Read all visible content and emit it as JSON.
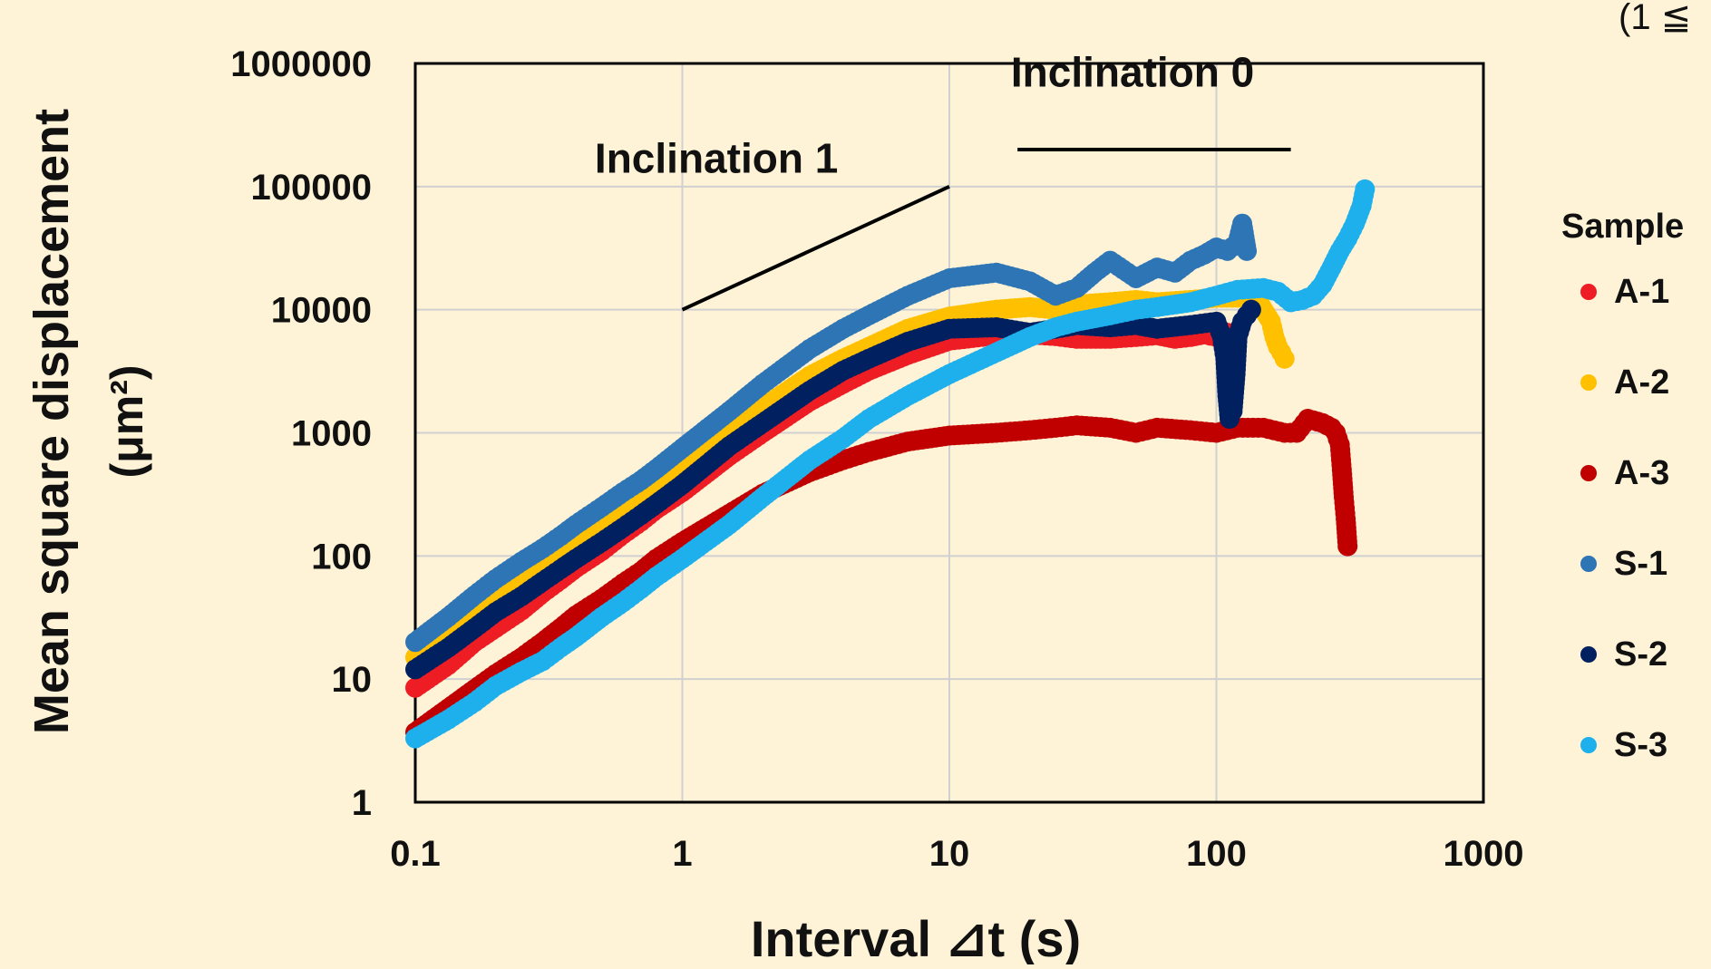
{
  "corner_note": "(1 ≦",
  "chart_data": {
    "type": "scatter",
    "title": "",
    "xlabel": "Interval ⊿t (s)",
    "ylabel_line1": "Mean square displacement",
    "ylabel_line2": "(μm²)",
    "x_scale": "log",
    "y_scale": "log",
    "xlim": [
      0.1,
      1000
    ],
    "ylim": [
      1,
      1000000
    ],
    "x_ticks": [
      0.1,
      1,
      10,
      100,
      1000
    ],
    "x_tick_labels": [
      "0.1",
      "1",
      "10",
      "100",
      "1000"
    ],
    "y_ticks": [
      1,
      10,
      100,
      1000,
      10000,
      100000,
      1000000
    ],
    "y_tick_labels": [
      "1",
      "10",
      "100",
      "1000",
      "10000",
      "100000",
      "1000000"
    ],
    "grid": true,
    "legend_title": "Sample",
    "legend_position": "right",
    "annotations": [
      {
        "text": "Inclination 1",
        "line": [
          [
            1,
            10000
          ],
          [
            10,
            100000
          ]
        ],
        "label_at": [
          0.47,
          130000
        ]
      },
      {
        "text": "Inclination 0",
        "line": [
          [
            18,
            200000
          ],
          [
            190,
            200000
          ]
        ],
        "label_at": [
          17,
          650000
        ]
      }
    ],
    "series": [
      {
        "name": "A-1",
        "color": "#ee1d24",
        "points": [
          [
            0.1,
            8.5
          ],
          [
            0.133,
            13
          ],
          [
            0.167,
            20
          ],
          [
            0.2,
            26
          ],
          [
            0.25,
            36
          ],
          [
            0.3,
            50
          ],
          [
            0.35,
            64
          ],
          [
            0.4,
            80
          ],
          [
            0.5,
            110
          ],
          [
            0.6,
            150
          ],
          [
            0.7,
            190
          ],
          [
            0.8,
            240
          ],
          [
            1,
            330
          ],
          [
            1.5,
            650
          ],
          [
            2,
            1000
          ],
          [
            3,
            1800
          ],
          [
            4,
            2500
          ],
          [
            5,
            3200
          ],
          [
            7,
            4300
          ],
          [
            10,
            5600
          ],
          [
            15,
            6200
          ],
          [
            20,
            6300
          ],
          [
            25,
            6100
          ],
          [
            30,
            5800
          ],
          [
            40,
            5800
          ],
          [
            50,
            6000
          ],
          [
            60,
            6200
          ],
          [
            70,
            5800
          ],
          [
            80,
            6000
          ],
          [
            90,
            6300
          ],
          [
            100,
            6000
          ],
          [
            110,
            6500
          ]
        ]
      },
      {
        "name": "A-2",
        "color": "#ffc000",
        "points": [
          [
            0.1,
            15
          ],
          [
            0.133,
            23
          ],
          [
            0.167,
            33
          ],
          [
            0.2,
            44
          ],
          [
            0.25,
            60
          ],
          [
            0.3,
            80
          ],
          [
            0.35,
            100
          ],
          [
            0.4,
            125
          ],
          [
            0.5,
            175
          ],
          [
            0.6,
            230
          ],
          [
            0.7,
            290
          ],
          [
            0.8,
            360
          ],
          [
            1,
            520
          ],
          [
            1.5,
            1000
          ],
          [
            2,
            1600
          ],
          [
            3,
            2900
          ],
          [
            4,
            4000
          ],
          [
            5,
            5000
          ],
          [
            7,
            7000
          ],
          [
            10,
            8800
          ],
          [
            15,
            10000
          ],
          [
            20,
            10500
          ],
          [
            25,
            10000
          ],
          [
            30,
            11000
          ],
          [
            40,
            11500
          ],
          [
            50,
            12000
          ],
          [
            60,
            11500
          ],
          [
            80,
            12000
          ],
          [
            100,
            12500
          ],
          [
            120,
            12500
          ],
          [
            140,
            13000
          ],
          [
            150,
            10000
          ],
          [
            160,
            8000
          ],
          [
            165,
            6000
          ],
          [
            170,
            5000
          ],
          [
            175,
            4500
          ],
          [
            180,
            4000
          ]
        ]
      },
      {
        "name": "A-3",
        "color": "#c00000",
        "points": [
          [
            0.1,
            3.7
          ],
          [
            0.133,
            5.8
          ],
          [
            0.167,
            8.3
          ],
          [
            0.2,
            11
          ],
          [
            0.25,
            15
          ],
          [
            0.3,
            20
          ],
          [
            0.35,
            26
          ],
          [
            0.4,
            33
          ],
          [
            0.5,
            45
          ],
          [
            0.6,
            60
          ],
          [
            0.7,
            75
          ],
          [
            0.8,
            95
          ],
          [
            1,
            130
          ],
          [
            1.5,
            220
          ],
          [
            2,
            320
          ],
          [
            3,
            480
          ],
          [
            4,
            600
          ],
          [
            5,
            700
          ],
          [
            7,
            850
          ],
          [
            10,
            950
          ],
          [
            15,
            1000
          ],
          [
            20,
            1050
          ],
          [
            25,
            1100
          ],
          [
            30,
            1150
          ],
          [
            40,
            1100
          ],
          [
            50,
            1000
          ],
          [
            60,
            1100
          ],
          [
            80,
            1050
          ],
          [
            100,
            1000
          ],
          [
            120,
            1100
          ],
          [
            150,
            1100
          ],
          [
            180,
            1000
          ],
          [
            200,
            1000
          ],
          [
            220,
            1300
          ],
          [
            250,
            1200
          ],
          [
            270,
            1100
          ],
          [
            280,
            1000
          ],
          [
            290,
            800
          ],
          [
            295,
            500
          ],
          [
            300,
            300
          ],
          [
            305,
            200
          ],
          [
            310,
            120
          ]
        ]
      },
      {
        "name": "S-1",
        "color": "#2e75b6",
        "points": [
          [
            0.1,
            20
          ],
          [
            0.133,
            32
          ],
          [
            0.167,
            48
          ],
          [
            0.2,
            65
          ],
          [
            0.25,
            90
          ],
          [
            0.3,
            115
          ],
          [
            0.35,
            145
          ],
          [
            0.4,
            180
          ],
          [
            0.5,
            250
          ],
          [
            0.6,
            330
          ],
          [
            0.7,
            410
          ],
          [
            0.8,
            510
          ],
          [
            1,
            750
          ],
          [
            1.5,
            1500
          ],
          [
            2,
            2500
          ],
          [
            3,
            4800
          ],
          [
            4,
            7000
          ],
          [
            5,
            9000
          ],
          [
            7,
            13000
          ],
          [
            10,
            18000
          ],
          [
            15,
            20000
          ],
          [
            20,
            17000
          ],
          [
            25,
            13000
          ],
          [
            30,
            15000
          ],
          [
            35,
            20000
          ],
          [
            40,
            25000
          ],
          [
            50,
            18000
          ],
          [
            60,
            22000
          ],
          [
            70,
            20000
          ],
          [
            80,
            25000
          ],
          [
            90,
            28000
          ],
          [
            100,
            32000
          ],
          [
            110,
            30000
          ],
          [
            120,
            35000
          ],
          [
            125,
            50000
          ],
          [
            130,
            30000
          ]
        ]
      },
      {
        "name": "S-2",
        "color": "#002060",
        "points": [
          [
            0.1,
            12
          ],
          [
            0.133,
            18
          ],
          [
            0.167,
            26
          ],
          [
            0.2,
            35
          ],
          [
            0.25,
            47
          ],
          [
            0.3,
            62
          ],
          [
            0.35,
            78
          ],
          [
            0.4,
            95
          ],
          [
            0.5,
            130
          ],
          [
            0.6,
            170
          ],
          [
            0.7,
            215
          ],
          [
            0.8,
            265
          ],
          [
            1,
            380
          ],
          [
            1.5,
            780
          ],
          [
            2,
            1200
          ],
          [
            3,
            2200
          ],
          [
            4,
            3200
          ],
          [
            5,
            4000
          ],
          [
            7,
            5500
          ],
          [
            10,
            7000
          ],
          [
            15,
            7200
          ],
          [
            20,
            6500
          ],
          [
            25,
            7000
          ],
          [
            30,
            7500
          ],
          [
            40,
            7200
          ],
          [
            50,
            7500
          ],
          [
            60,
            7000
          ],
          [
            80,
            7500
          ],
          [
            100,
            8000
          ],
          [
            105,
            6000
          ],
          [
            108,
            4000
          ],
          [
            110,
            2000
          ],
          [
            112,
            1300
          ],
          [
            115,
            1500
          ],
          [
            118,
            3000
          ],
          [
            120,
            6000
          ],
          [
            125,
            8000
          ],
          [
            130,
            9000
          ],
          [
            135,
            10000
          ]
        ]
      },
      {
        "name": "S-3",
        "color": "#1eb0ec",
        "points": [
          [
            0.1,
            3.3
          ],
          [
            0.133,
            4.7
          ],
          [
            0.167,
            6.5
          ],
          [
            0.2,
            8.8
          ],
          [
            0.25,
            11.5
          ],
          [
            0.3,
            14
          ],
          [
            0.35,
            18
          ],
          [
            0.4,
            22
          ],
          [
            0.5,
            32
          ],
          [
            0.6,
            42
          ],
          [
            0.7,
            54
          ],
          [
            0.8,
            68
          ],
          [
            1,
            95
          ],
          [
            1.5,
            180
          ],
          [
            2,
            300
          ],
          [
            3,
            600
          ],
          [
            4,
            900
          ],
          [
            5,
            1300
          ],
          [
            7,
            2000
          ],
          [
            10,
            3000
          ],
          [
            15,
            4500
          ],
          [
            20,
            6000
          ],
          [
            25,
            7200
          ],
          [
            30,
            8000
          ],
          [
            40,
            9000
          ],
          [
            50,
            10000
          ],
          [
            60,
            10500
          ],
          [
            80,
            11500
          ],
          [
            100,
            13000
          ],
          [
            120,
            14500
          ],
          [
            150,
            15000
          ],
          [
            170,
            14000
          ],
          [
            190,
            11500
          ],
          [
            210,
            12000
          ],
          [
            230,
            13000
          ],
          [
            250,
            16000
          ],
          [
            270,
            22000
          ],
          [
            290,
            30000
          ],
          [
            310,
            38000
          ],
          [
            330,
            50000
          ],
          [
            350,
            70000
          ],
          [
            360,
            95000
          ]
        ]
      }
    ]
  }
}
